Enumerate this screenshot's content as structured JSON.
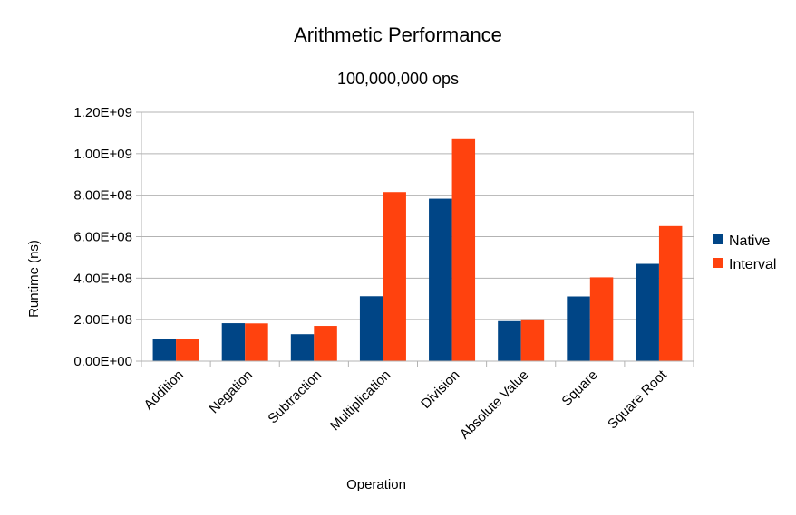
{
  "chart_data": {
    "type": "bar",
    "title": "Arithmetic Performance",
    "subtitle": "100,000,000 ops",
    "xlabel": "Operation",
    "ylabel": "Runtime (ns)",
    "ylim": [
      0,
      1200000000
    ],
    "ytick_step": 200000000,
    "ytick_labels": [
      "0.00E+00",
      "2.00E+08",
      "4.00E+08",
      "6.00E+08",
      "8.00E+08",
      "1.00E+09",
      "1.20E+09"
    ],
    "grid": true,
    "legend_position": "right",
    "categories": [
      "Addition",
      "Negation",
      "Subtraction",
      "Multiplication",
      "Division",
      "Absolute Value",
      "Square",
      "Square Root"
    ],
    "series": [
      {
        "name": "Native",
        "color": "#004586",
        "values": [
          105000000,
          183000000,
          130000000,
          313000000,
          783000000,
          193000000,
          312000000,
          469000000
        ]
      },
      {
        "name": "Interval",
        "color": "#ff420e",
        "values": [
          105000000,
          182000000,
          170000000,
          815000000,
          1070000000,
          197000000,
          404000000,
          651000000
        ]
      }
    ]
  }
}
